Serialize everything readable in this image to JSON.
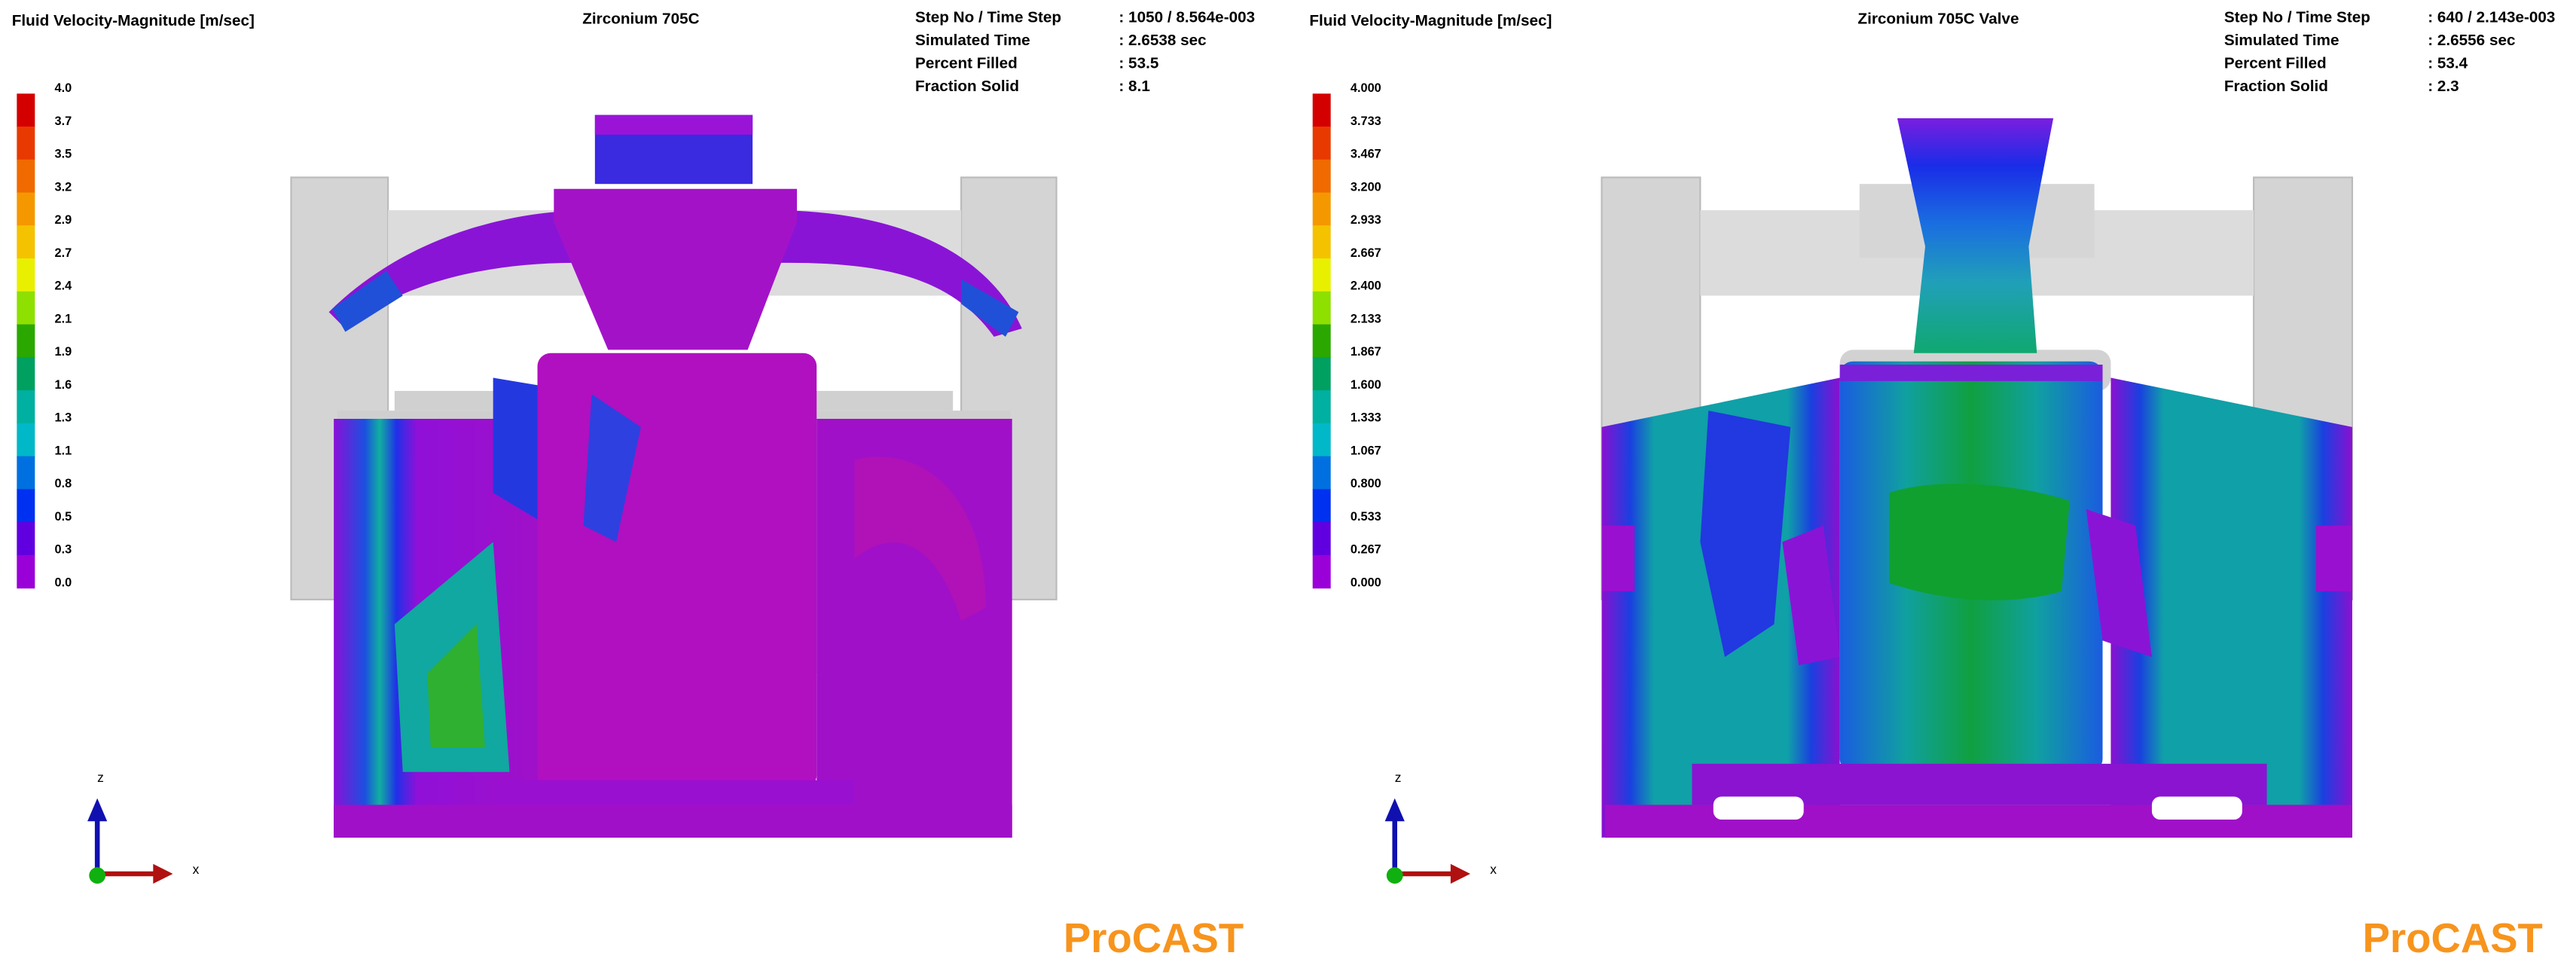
{
  "panels": [
    {
      "legend_title": "Fluid Velocity-Magnitude [m/sec]",
      "title": "Zirconium 705C",
      "legend_labels": [
        "4.0",
        "3.7",
        "3.5",
        "3.2",
        "2.9",
        "2.7",
        "2.4",
        "2.1",
        "1.9",
        "1.6",
        "1.3",
        "1.1",
        "0.8",
        "0.5",
        "0.3",
        "0.0"
      ],
      "info": [
        {
          "label": "Step No / Time Step",
          "value": ": 1050 / 8.564e-003"
        },
        {
          "label": "Simulated Time",
          "value": ": 2.6538 sec"
        },
        {
          "label": "Percent Filled",
          "value": ": 53.5"
        },
        {
          "label": "Fraction Solid",
          "value": ": 8.1"
        }
      ],
      "axis_z": "z",
      "axis_x": "x",
      "logo": "ProCAST"
    },
    {
      "legend_title": "Fluid Velocity-Magnitude [m/sec]",
      "title": "Zirconium 705C Valve",
      "legend_labels": [
        "4.000",
        "3.733",
        "3.467",
        "3.200",
        "2.933",
        "2.667",
        "2.400",
        "2.133",
        "1.867",
        "1.600",
        "1.333",
        "1.067",
        "0.800",
        "0.533",
        "0.267",
        "0.000"
      ],
      "info": [
        {
          "label": "Step No / Time Step",
          "value": ": 640 / 2.143e-003"
        },
        {
          "label": "Simulated Time",
          "value": ": 2.6556  sec"
        },
        {
          "label": "Percent Filled",
          "value": ": 53.4"
        },
        {
          "label": "Fraction Solid",
          "value": ": 2.3"
        }
      ],
      "axis_z": "z",
      "axis_x": "x",
      "logo": "ProCAST"
    }
  ]
}
